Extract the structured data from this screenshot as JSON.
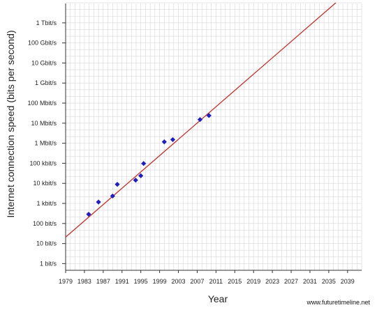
{
  "chart_data": {
    "type": "scatter",
    "title": "",
    "xlabel": "Year",
    "ylabel": "Internet connection speed (bits per second)",
    "credit": "www.futuretimeline.net",
    "grid": true,
    "xlim": [
      1979,
      2042
    ],
    "ylim": [
      -0.3333,
      12.9667
    ],
    "y_scale": "log10",
    "x_ticks": [
      {
        "value": 1979,
        "label": "1979"
      },
      {
        "value": 1983,
        "label": "1983"
      },
      {
        "value": 1987,
        "label": "1987"
      },
      {
        "value": 1991,
        "label": "1991"
      },
      {
        "value": 1995,
        "label": "1995"
      },
      {
        "value": 1999,
        "label": "1999"
      },
      {
        "value": 2003,
        "label": "2003"
      },
      {
        "value": 2007,
        "label": "2007"
      },
      {
        "value": 2011,
        "label": "2011"
      },
      {
        "value": 2015,
        "label": "2015"
      },
      {
        "value": 2019,
        "label": "2019"
      },
      {
        "value": 2023,
        "label": "2023"
      },
      {
        "value": 2027,
        "label": "2027"
      },
      {
        "value": 2031,
        "label": "2031"
      },
      {
        "value": 2035,
        "label": "2035"
      },
      {
        "value": 2039,
        "label": "2039"
      }
    ],
    "y_ticks": [
      {
        "value": 0,
        "label": "1 bit/s"
      },
      {
        "value": 1,
        "label": "10 bit/s"
      },
      {
        "value": 2,
        "label": "100 bit/s"
      },
      {
        "value": 3,
        "label": "1 kbit/s"
      },
      {
        "value": 4,
        "label": "10 kbit/s"
      },
      {
        "value": 5,
        "label": "100 kbit/s"
      },
      {
        "value": 6,
        "label": "1 Mbit/s"
      },
      {
        "value": 7,
        "label": "10 Mbit/s"
      },
      {
        "value": 8,
        "label": "100 Mbit/s"
      },
      {
        "value": 9,
        "label": "1 Gbit/s"
      },
      {
        "value": 10,
        "label": "10 Gbit/s"
      },
      {
        "value": 11,
        "label": "100 Gbit/s"
      },
      {
        "value": 12,
        "label": "1 Tbit/s"
      }
    ],
    "points": [
      {
        "x": 1983.9,
        "y": 2.46
      },
      {
        "x": 1986.0,
        "y": 3.07
      },
      {
        "x": 1989.0,
        "y": 3.37
      },
      {
        "x": 1990.0,
        "y": 3.95
      },
      {
        "x": 1993.9,
        "y": 4.16
      },
      {
        "x": 1995.0,
        "y": 4.38
      },
      {
        "x": 1995.6,
        "y": 4.99
      },
      {
        "x": 2000.0,
        "y": 6.07
      },
      {
        "x": 2001.8,
        "y": 6.18
      },
      {
        "x": 2007.6,
        "y": 7.18
      },
      {
        "x": 2009.5,
        "y": 7.38
      }
    ],
    "trend_line": {
      "x": [
        1979,
        2036.5
      ],
      "y": [
        1.32,
        13.0
      ]
    },
    "colors": {
      "points": "#1f1fbf",
      "trend": "#c0302a",
      "grid": "#d6d6d6",
      "axis": "#333333"
    }
  }
}
